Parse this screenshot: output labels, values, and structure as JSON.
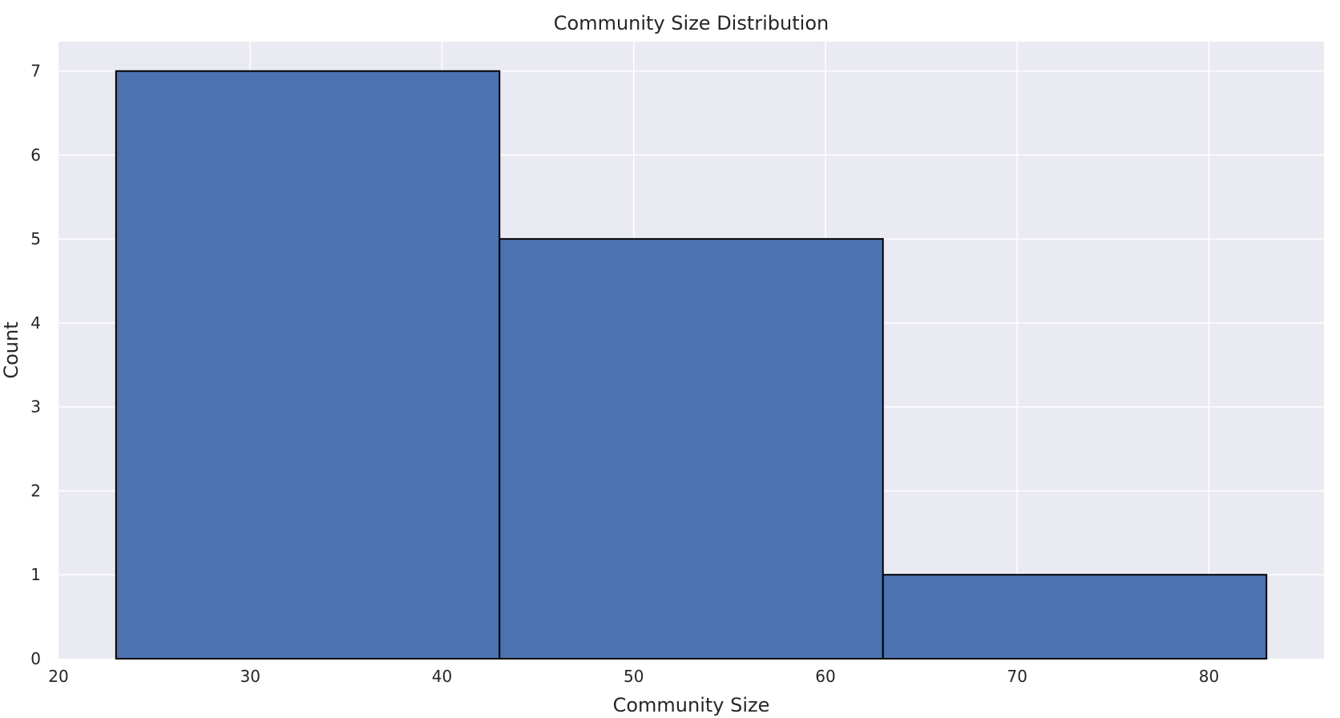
{
  "chart_data": {
    "type": "bar",
    "title": "Community Size Distribution",
    "xlabel": "Community Size",
    "ylabel": "Count",
    "xlim": [
      20,
      86
    ],
    "ylim": [
      0,
      7.35
    ],
    "x_ticks": [
      20,
      30,
      40,
      50,
      60,
      70,
      80
    ],
    "y_ticks": [
      0,
      1,
      2,
      3,
      4,
      5,
      6,
      7
    ],
    "bins": [
      {
        "start": 23,
        "end": 43,
        "count": 7
      },
      {
        "start": 43,
        "end": 63,
        "count": 5
      },
      {
        "start": 63,
        "end": 83,
        "count": 1
      }
    ],
    "grid": true,
    "legend": "none"
  },
  "colors": {
    "plot_background": "#eaeaf2",
    "grid": "#ffffff",
    "bar_fill": "#4c72b0",
    "bar_edge": "#000000",
    "text": "#262626"
  }
}
